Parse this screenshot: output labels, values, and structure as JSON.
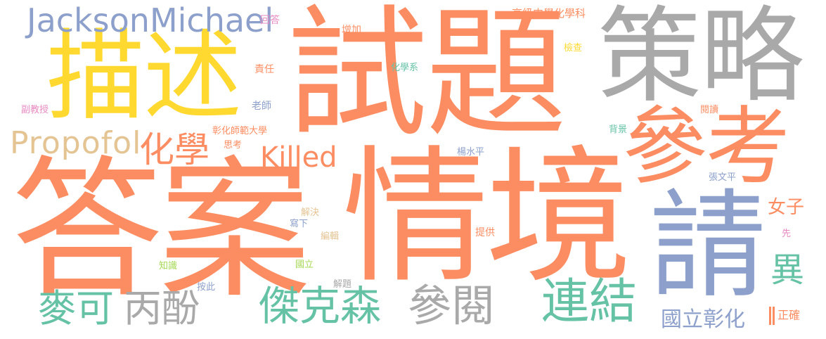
{
  "colors": {
    "orange": "#fc8d62",
    "gray": "#a9a9a9",
    "yellow": "#ffd92f",
    "blue": "#8da0cb",
    "green": "#66c2a5",
    "tan": "#e5c494",
    "pink": "#e78ac3",
    "lime": "#a6d854"
  },
  "words": {
    "ans": "答案",
    "qingjing": "情境",
    "shiti": "試題",
    "celue": "策略",
    "miaoshu": "描述",
    "cankao": "參考",
    "qing": "請",
    "jackson": "JacksonMichael",
    "propofol": "Propofol",
    "huaxue": "化學",
    "killed": "Killed",
    "maike": "麥可",
    "bingfen": "丙酚",
    "jiekesen": "傑克森",
    "canyue": "參閱",
    "lianjie": "連結",
    "yi": "異",
    "nvzi": "女子",
    "guolizhanghua": "國立彰化",
    "zhengque": "正確",
    "huida": "回答",
    "zengjia": "增加",
    "gaoji": "高級中學化學科",
    "jiancha": "檢查",
    "zeren": "責任",
    "huaxuexi": "化學系",
    "fujiaoshou": "副教授",
    "laoshi": "老師",
    "yuedu": "閱讀",
    "zhanghuashida": "彰化師範大學",
    "sikao": "思考",
    "beijing": "背景",
    "yangshuiping": "楊水平",
    "zhangwenping": "張文平",
    "jiejue": "解決",
    "xiexia": "寫下",
    "bianji": "編輯",
    "tigong": "提供",
    "xian": "先",
    "zhishi": "知識",
    "guoli": "國立",
    "anci": "按此",
    "jieti": "解題"
  }
}
